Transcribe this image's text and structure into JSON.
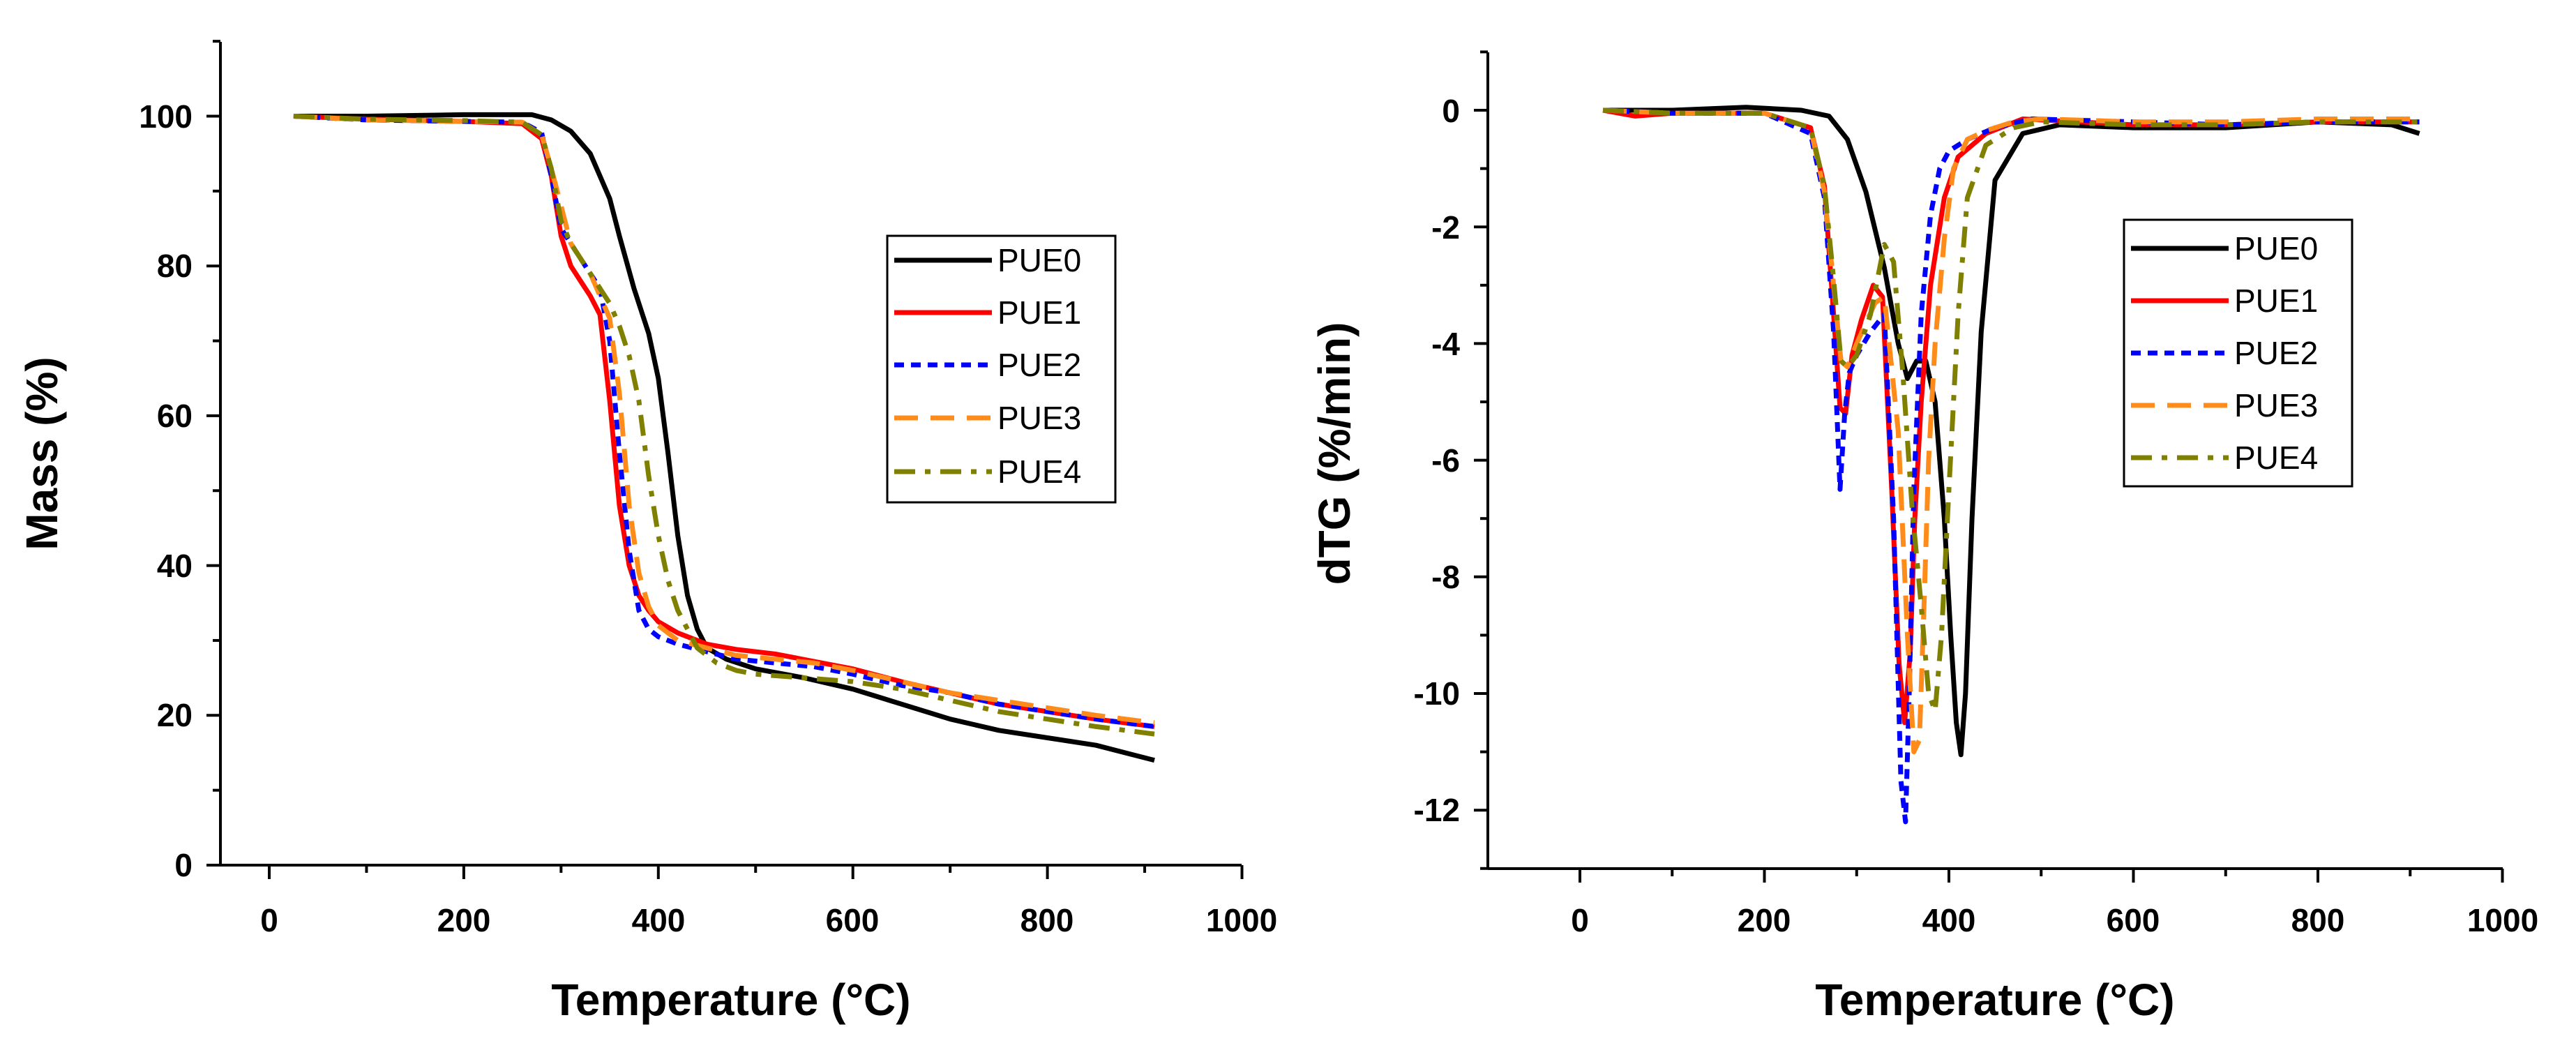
{
  "chart_data": [
    {
      "type": "line",
      "xlabel": "Temperature (°C)",
      "ylabel": "Mass (%)",
      "xlim": [
        -50,
        1000
      ],
      "ylim": [
        0,
        110
      ],
      "xticks": [
        0,
        200,
        400,
        600,
        800,
        1000
      ],
      "yticks": [
        0,
        20,
        40,
        60,
        80,
        100
      ],
      "legend_position": "center-right",
      "series": [
        {
          "name": "PUE0",
          "color": "#000000",
          "dash": "solid",
          "x": [
            25,
            100,
            200,
            270,
            290,
            310,
            330,
            350,
            360,
            375,
            390,
            400,
            410,
            420,
            430,
            440,
            450,
            470,
            500,
            550,
            600,
            650,
            700,
            750,
            800,
            850,
            880,
            910
          ],
          "y": [
            100,
            100,
            100.2,
            100.2,
            99.5,
            98,
            95,
            89,
            84,
            77,
            71,
            65,
            55,
            44,
            36,
            31.5,
            29,
            27.5,
            26.2,
            25,
            23.5,
            21.5,
            19.5,
            18,
            17,
            16,
            15,
            14
          ]
        },
        {
          "name": "PUE1",
          "color": "#ff0000",
          "dash": "solid",
          "x": [
            25,
            100,
            200,
            260,
            280,
            290,
            300,
            310,
            320,
            330,
            340,
            350,
            360,
            370,
            380,
            390,
            400,
            420,
            450,
            480,
            520,
            560,
            600,
            650,
            700,
            750,
            800,
            850,
            910
          ],
          "y": [
            100,
            99.6,
            99.3,
            99,
            97,
            92,
            84,
            80,
            78,
            76,
            73.5,
            62,
            48,
            40,
            36,
            34,
            32.5,
            31,
            29.5,
            28.8,
            28.2,
            27.2,
            26.2,
            24.5,
            23,
            21.5,
            20.5,
            19.5,
            18.5
          ]
        },
        {
          "name": "PUE2",
          "color": "#0000ff",
          "dash": "6,4",
          "x": [
            25,
            100,
            200,
            260,
            280,
            290,
            300,
            320,
            340,
            350,
            360,
            370,
            380,
            390,
            400,
            420,
            450,
            480,
            520,
            560,
            600,
            650,
            700,
            750,
            800,
            850,
            910
          ],
          "y": [
            100,
            99.5,
            99.3,
            99.2,
            97.8,
            92,
            85,
            81,
            77,
            70,
            55,
            42,
            34,
            31.5,
            30.5,
            29.5,
            28.5,
            27.5,
            27,
            26.5,
            25.5,
            24,
            23,
            21.5,
            20.5,
            19.5,
            18.5
          ]
        },
        {
          "name": "PUE3",
          "color": "#ff8c1a",
          "dash": "dash",
          "x": [
            25,
            100,
            200,
            260,
            280,
            290,
            300,
            310,
            330,
            350,
            360,
            370,
            380,
            390,
            400,
            420,
            450,
            480,
            520,
            560,
            600,
            650,
            700,
            750,
            800,
            850,
            910
          ],
          "y": [
            100,
            99.5,
            99.3,
            99.2,
            97.5,
            93,
            88,
            83,
            79,
            73,
            63,
            48,
            39,
            34.5,
            32,
            30,
            29,
            28,
            27.5,
            27,
            26,
            24.5,
            23,
            22,
            21,
            20,
            19
          ]
        },
        {
          "name": "PUE4",
          "color": "#808000",
          "dash": "dashdot",
          "x": [
            25,
            100,
            200,
            260,
            280,
            290,
            300,
            310,
            330,
            350,
            360,
            370,
            380,
            390,
            400,
            410,
            420,
            440,
            460,
            480,
            500,
            550,
            600,
            650,
            700,
            750,
            800,
            850,
            910
          ],
          "y": [
            100,
            99.6,
            99.4,
            99.2,
            97.5,
            93,
            86,
            83,
            79,
            75,
            72,
            68,
            62,
            52,
            44,
            38,
            34,
            29,
            27,
            26,
            25.5,
            25,
            24.5,
            23.5,
            22,
            20.5,
            19.5,
            18.5,
            17.5
          ]
        }
      ]
    },
    {
      "type": "line",
      "xlabel": "Temperature (°C)",
      "ylabel": "dTG (%/min)",
      "xlim": [
        -100,
        1000
      ],
      "ylim": [
        -13,
        1
      ],
      "xticks": [
        0,
        200,
        400,
        600,
        800,
        1000
      ],
      "yticks": [
        0,
        -2,
        -4,
        -6,
        -8,
        -10,
        -12
      ],
      "legend_position": "center-right",
      "series": [
        {
          "name": "PUE0",
          "color": "#000000",
          "dash": "solid",
          "x": [
            25,
            100,
            180,
            240,
            270,
            290,
            310,
            330,
            345,
            355,
            365,
            375,
            385,
            395,
            402,
            408,
            413,
            418,
            425,
            435,
            450,
            480,
            520,
            600,
            700,
            800,
            880,
            910
          ],
          "y": [
            0,
            0,
            0.05,
            0,
            -0.1,
            -0.5,
            -1.4,
            -2.7,
            -4,
            -4.6,
            -4.3,
            -4.3,
            -5,
            -7,
            -9,
            -10.5,
            -11.05,
            -10,
            -7,
            -3.8,
            -1.2,
            -0.4,
            -0.25,
            -0.3,
            -0.3,
            -0.2,
            -0.25,
            -0.4
          ]
        },
        {
          "name": "PUE1",
          "color": "#ff0000",
          "dash": "solid",
          "x": [
            25,
            60,
            100,
            200,
            250,
            265,
            275,
            282,
            288,
            295,
            305,
            318,
            328,
            338,
            346,
            352,
            358,
            363,
            370,
            380,
            395,
            410,
            440,
            480,
            600,
            700,
            800,
            910
          ],
          "y": [
            0,
            -0.1,
            -0.05,
            -0.05,
            -0.3,
            -1.3,
            -3.5,
            -5.1,
            -5.2,
            -4.2,
            -3.6,
            -3.0,
            -3.2,
            -6.5,
            -9.5,
            -10.5,
            -9.3,
            -7,
            -5,
            -3,
            -1.5,
            -0.8,
            -0.4,
            -0.15,
            -0.25,
            -0.25,
            -0.2,
            -0.2
          ]
        },
        {
          "name": "PUE2",
          "color": "#0000ff",
          "dash": "6,4",
          "x": [
            25,
            100,
            200,
            250,
            265,
            275,
            282,
            287,
            292,
            300,
            315,
            330,
            340,
            348,
            353,
            357,
            362,
            370,
            380,
            390,
            400,
            420,
            450,
            490,
            600,
            700,
            800,
            910
          ],
          "y": [
            0,
            -0.05,
            -0.05,
            -0.4,
            -1.5,
            -3.8,
            -6.5,
            -5.2,
            -4.5,
            -4.2,
            -3.8,
            -3.5,
            -7,
            -11.5,
            -12.2,
            -10,
            -6.5,
            -3.5,
            -1.8,
            -1,
            -0.7,
            -0.5,
            -0.3,
            -0.15,
            -0.2,
            -0.25,
            -0.2,
            -0.2
          ]
        },
        {
          "name": "PUE3",
          "color": "#ff8c1a",
          "dash": "dash",
          "x": [
            25,
            100,
            200,
            250,
            265,
            275,
            283,
            290,
            300,
            320,
            330,
            345,
            355,
            362,
            368,
            373,
            378,
            385,
            395,
            405,
            420,
            440,
            470,
            500,
            600,
            700,
            800,
            910
          ],
          "y": [
            0,
            -0.05,
            -0.05,
            -0.3,
            -1.4,
            -3,
            -4.3,
            -4.4,
            -4.0,
            -3.3,
            -3.2,
            -5.5,
            -9,
            -11,
            -10.8,
            -8.5,
            -6,
            -4,
            -2.2,
            -1,
            -0.5,
            -0.35,
            -0.2,
            -0.15,
            -0.2,
            -0.2,
            -0.15,
            -0.15
          ]
        },
        {
          "name": "PUE4",
          "color": "#808000",
          "dash": "dashdot",
          "x": [
            25,
            100,
            200,
            250,
            265,
            275,
            283,
            290,
            300,
            315,
            330,
            340,
            350,
            360,
            370,
            378,
            385,
            392,
            400,
            410,
            420,
            440,
            470,
            500,
            600,
            700,
            800,
            910
          ],
          "y": [
            0,
            -0.05,
            -0.05,
            -0.3,
            -1.3,
            -2.9,
            -4.3,
            -4.4,
            -4.2,
            -3.5,
            -2.3,
            -2.6,
            -4.5,
            -6.8,
            -8.5,
            -10,
            -10.3,
            -9,
            -6.5,
            -3.5,
            -1.5,
            -0.6,
            -0.3,
            -0.2,
            -0.25,
            -0.25,
            -0.2,
            -0.2
          ]
        }
      ]
    }
  ]
}
